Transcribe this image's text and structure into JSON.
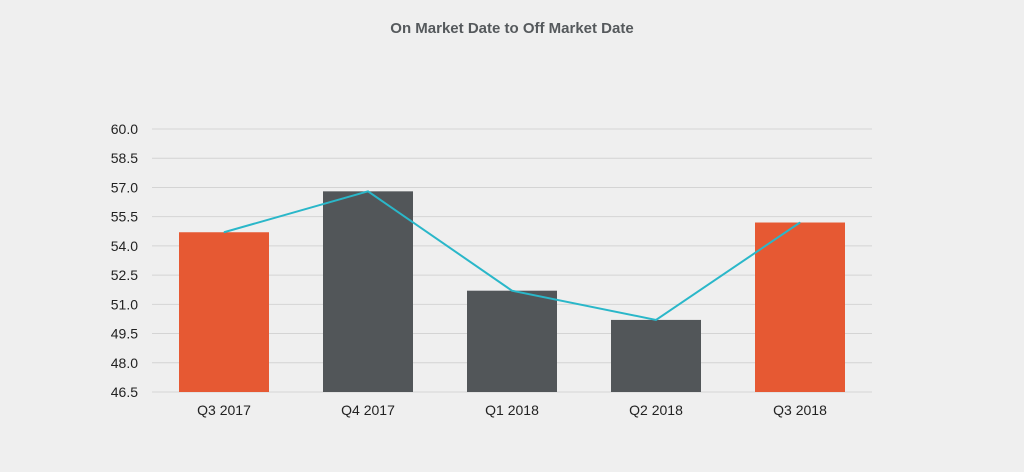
{
  "chart_data": {
    "type": "bar",
    "title": "On Market Date to Off Market Date",
    "xlabel": "",
    "ylabel": "",
    "categories": [
      "Q3 2017",
      "Q4 2017",
      "Q1 2018",
      "Q2 2018",
      "Q3 2018"
    ],
    "series": [
      {
        "type": "bar",
        "values": [
          54.7,
          56.8,
          51.7,
          50.2,
          55.2
        ],
        "colors": [
          "#e65933",
          "#525659",
          "#525659",
          "#525659",
          "#e65933"
        ]
      },
      {
        "type": "line",
        "values": [
          54.7,
          56.8,
          51.7,
          50.2,
          55.2
        ],
        "color": "#2ab7c9"
      }
    ],
    "ylim": [
      46.5,
      60.0
    ],
    "yticks": [
      "60.0",
      "58.5",
      "57.0",
      "55.5",
      "54.0",
      "52.5",
      "51.0",
      "49.5",
      "48.0",
      "46.5"
    ],
    "grid": true,
    "legend": "none"
  }
}
